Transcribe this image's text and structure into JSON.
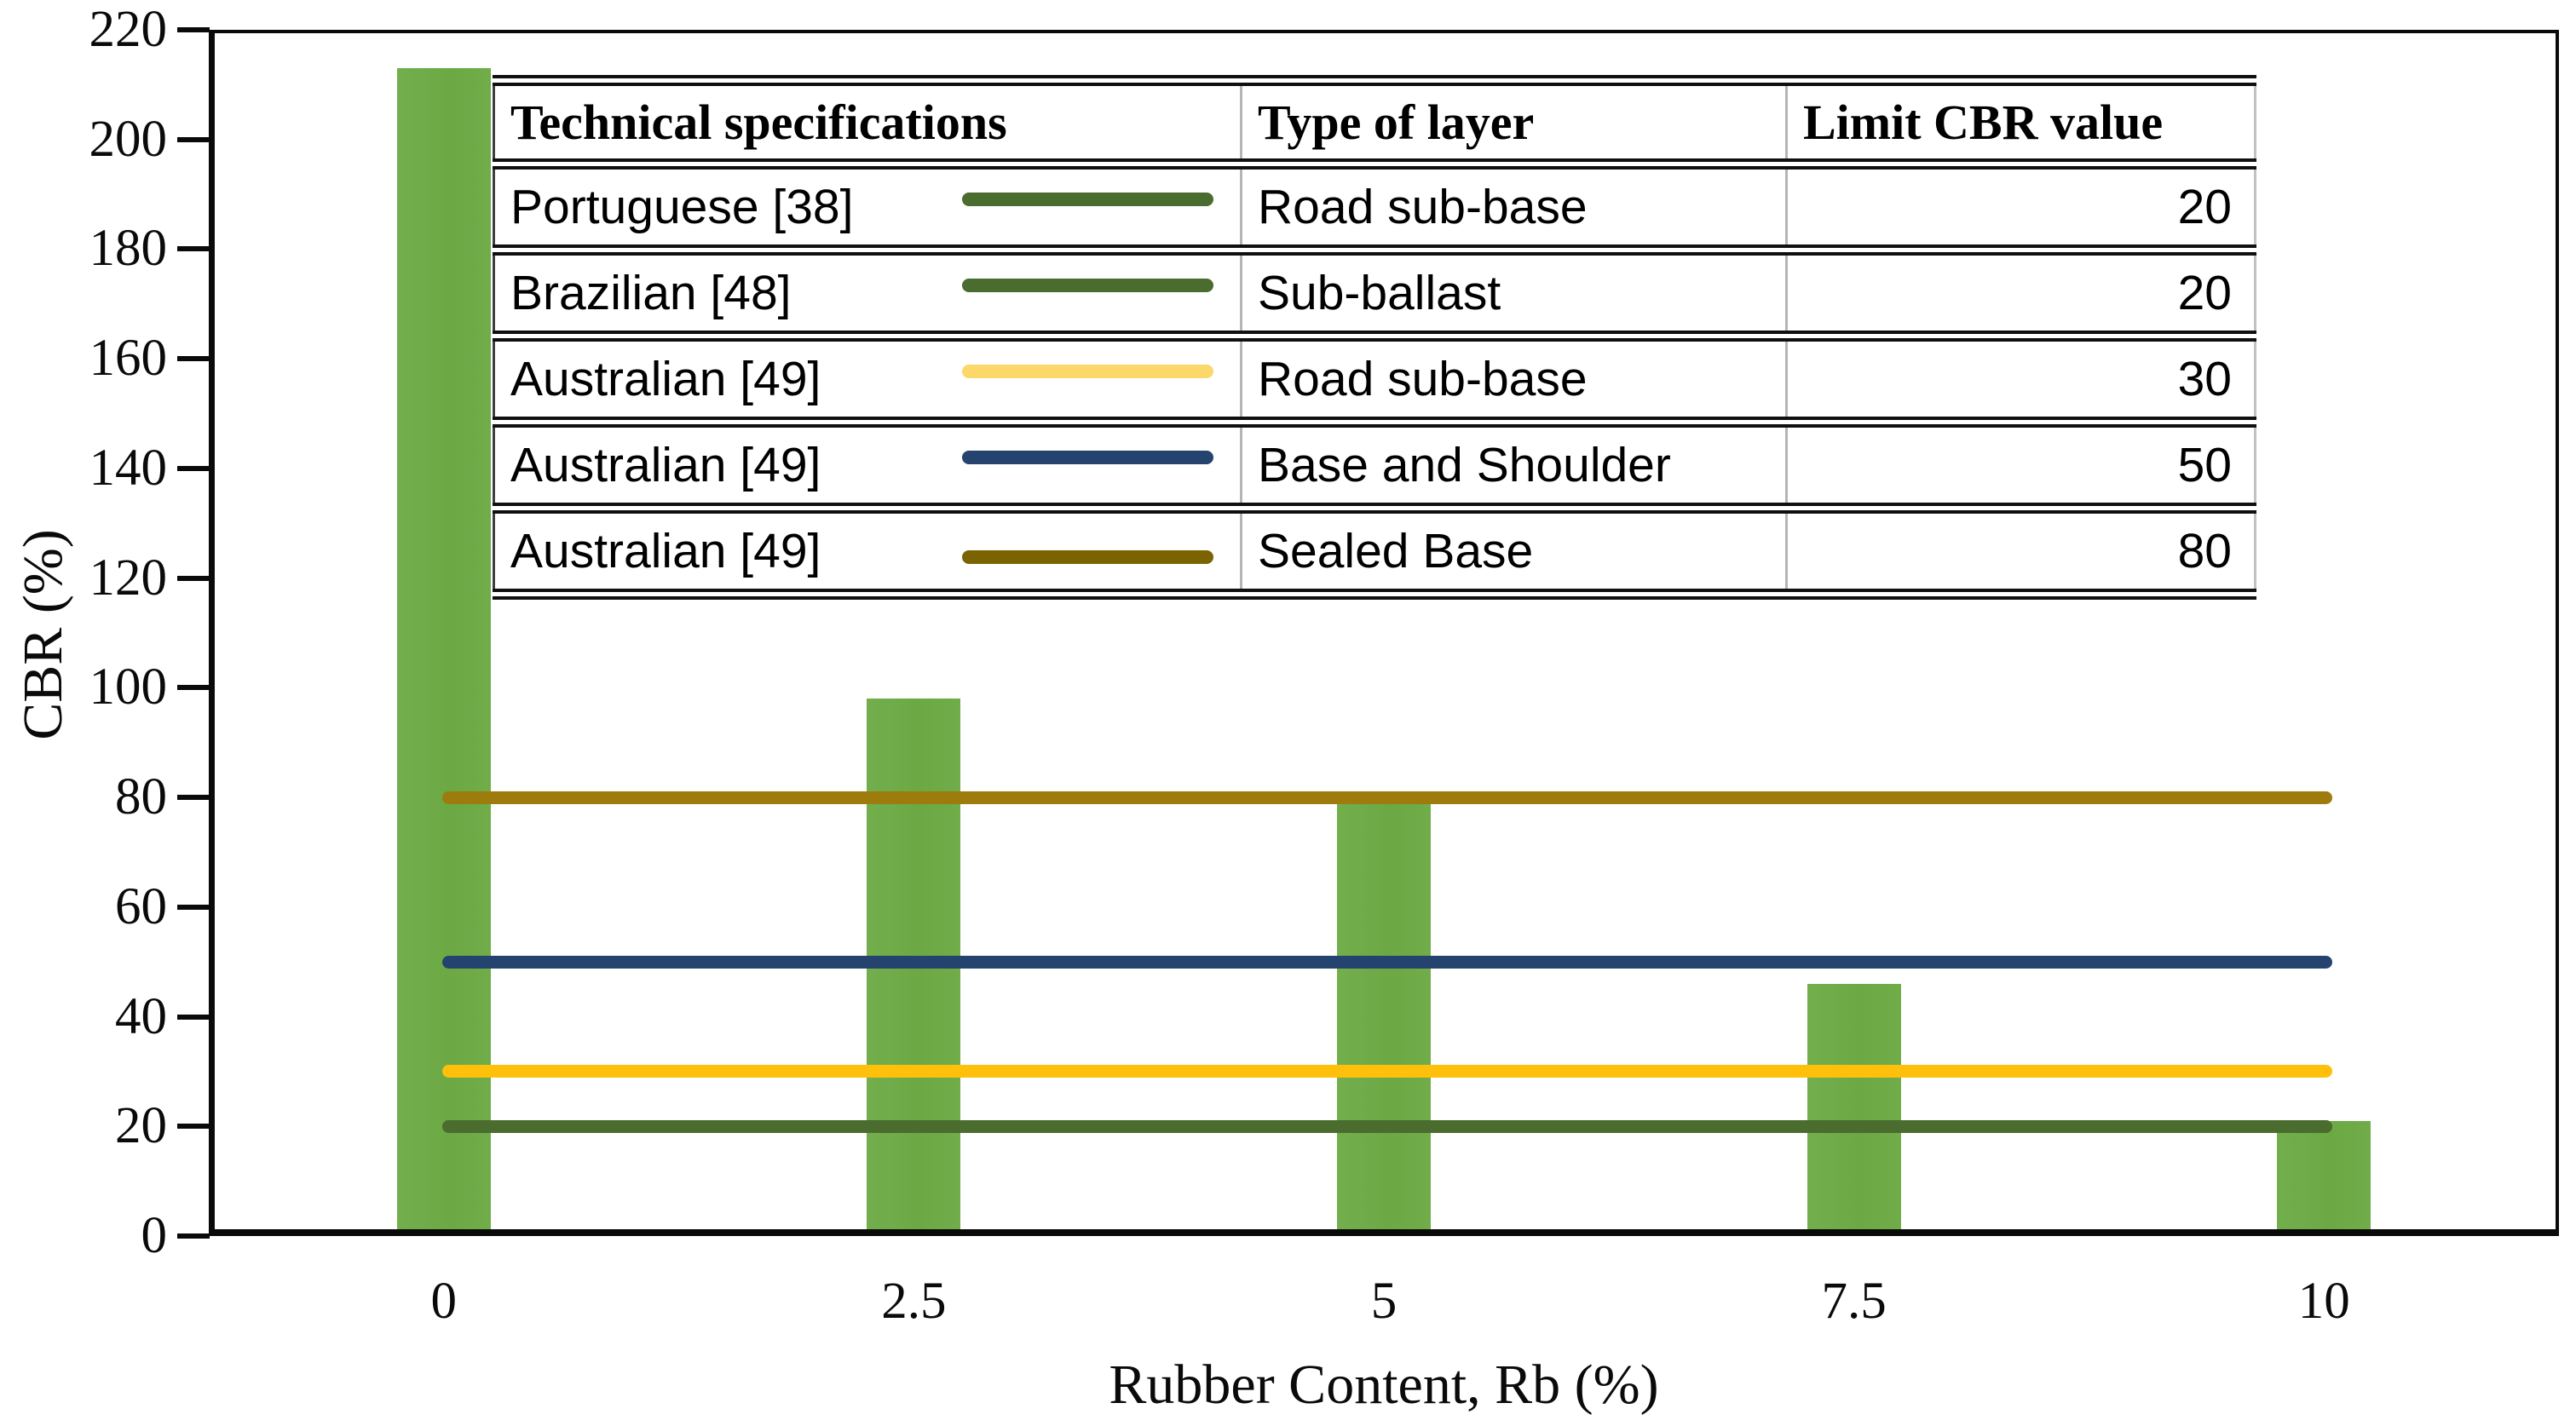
{
  "chart_data": {
    "type": "bar",
    "title": "",
    "xlabel": "Rubber Content, Rb (%)",
    "ylabel": "CBR (%)",
    "categories": [
      "0",
      "2.5",
      "5",
      "7.5",
      "10"
    ],
    "values": [
      213,
      98,
      79,
      46,
      21
    ],
    "bar_color": "#6CA944",
    "ylim": [
      0,
      220
    ],
    "ytick_step": 20,
    "grid": false,
    "legend_position": "table-inside-top",
    "reference_lines": [
      {
        "spec": "Portuguese [38]",
        "layer": "Road sub-base",
        "limit": "20",
        "value": 20,
        "line_color": "#4A6C2E",
        "swatch_color": "#4A6C2E"
      },
      {
        "spec": "Brazilian [48]",
        "layer": "Sub-ballast",
        "limit": "20",
        "value": 20,
        "line_color": "#4A6C2E",
        "swatch_color": "#4A6C2E"
      },
      {
        "spec": "Australian [49]",
        "layer": "Road sub-base",
        "limit": "30",
        "value": 30,
        "line_color": "#FEC00B",
        "swatch_color": "#FBD869"
      },
      {
        "spec": "Australian [49]",
        "layer": "Base and Shoulder",
        "limit": "50",
        "value": 50,
        "line_color": "#24436E",
        "swatch_color": "#24436E"
      },
      {
        "spec": "Australian [49]",
        "layer": "Sealed Base",
        "limit": "80",
        "value": 80,
        "line_color": "#9D7B0C",
        "swatch_color": "#7B6301"
      }
    ]
  },
  "legend_table": {
    "headers": [
      "Technical specifications",
      "Type of layer",
      "Limit CBR value"
    ]
  }
}
